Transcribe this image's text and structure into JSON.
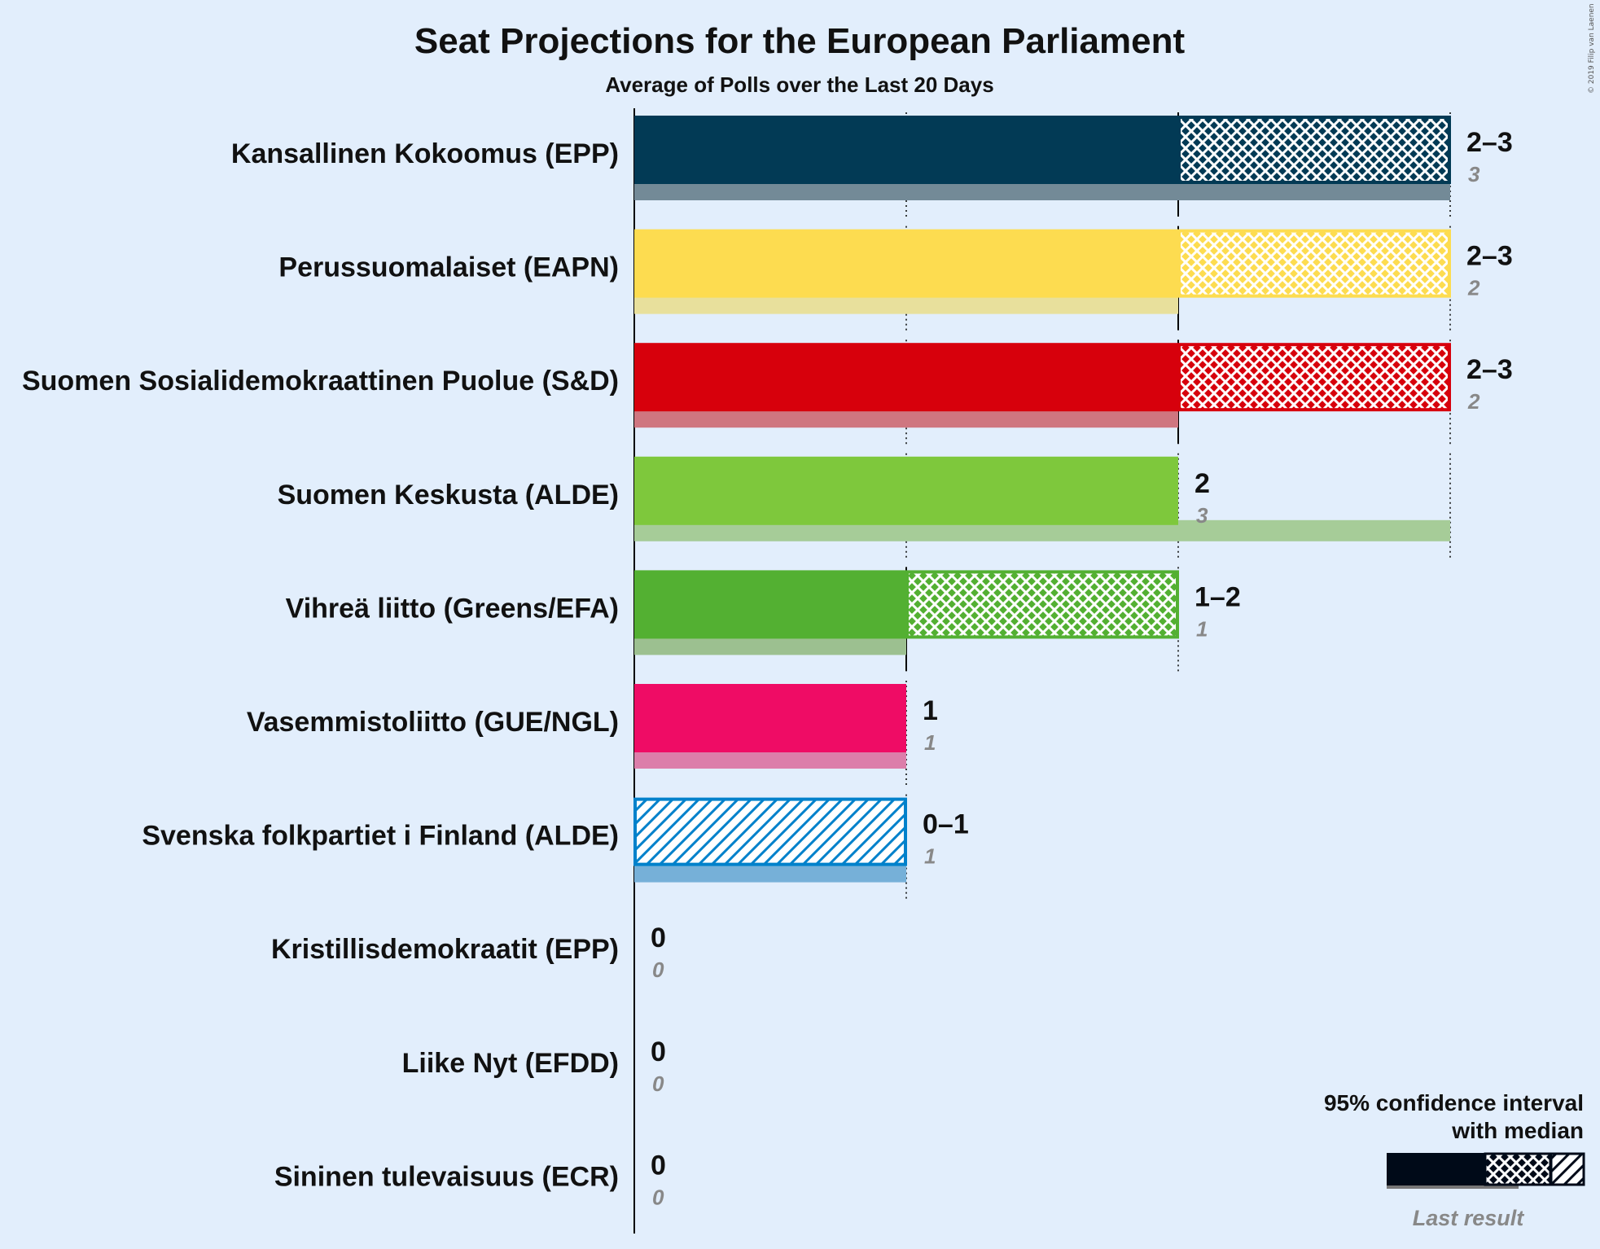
{
  "chart_data": {
    "type": "bar",
    "title": "Seat Projections for the European Parliament",
    "subtitle": "Average of Polls over the Last 20 Days",
    "xlim": [
      0,
      3
    ],
    "orientation": "horizontal",
    "copyright": "© 2019 Filip van Laenen",
    "legend": {
      "line1": "95% confidence interval",
      "line2": "with median",
      "last_result": "Last result",
      "placement": "bottom-right"
    },
    "parties": [
      {
        "name": "Kansallinen Kokoomus (EPP)",
        "low": 2,
        "median": 2,
        "high": 3,
        "label": "2–3",
        "last": 3,
        "last_label": "3",
        "color": "#023a55",
        "last_color": "#738a97"
      },
      {
        "name": "Perussuomalaiset (EAPN)",
        "low": 2,
        "median": 2,
        "high": 3,
        "label": "2–3",
        "last": 2,
        "last_label": "2",
        "color": "#fddc50",
        "last_color": "#e8e09c"
      },
      {
        "name": "Suomen Sosialidemokraattinen Puolue (S&D)",
        "low": 2,
        "median": 2,
        "high": 3,
        "label": "2–3",
        "last": 2,
        "last_label": "2",
        "color": "#d7000c",
        "last_color": "#cf7680"
      },
      {
        "name": "Suomen Keskusta (ALDE)",
        "low": 2,
        "median": 2,
        "high": 2,
        "label": "2",
        "last": 3,
        "last_label": "3",
        "color": "#7ec83c",
        "last_color": "#a6cc98"
      },
      {
        "name": "Vihreä liitto (Greens/EFA)",
        "low": 1,
        "median": 1,
        "high": 2,
        "label": "1–2",
        "last": 1,
        "last_label": "1",
        "color": "#53b032",
        "last_color": "#9cc090"
      },
      {
        "name": "Vasemmistoliitto (GUE/NGL)",
        "low": 1,
        "median": 1,
        "high": 1,
        "label": "1",
        "last": 1,
        "last_label": "1",
        "color": "#ef0c65",
        "last_color": "#dc7eaa"
      },
      {
        "name": "Svenska folkpartiet i Finland (ALDE)",
        "low": 0,
        "median": 0,
        "high": 1,
        "label": "0–1",
        "last": 1,
        "last_label": "1",
        "color": "#0081cb",
        "last_color": "#76b0d8"
      },
      {
        "name": "Kristillisdemokraatit (EPP)",
        "low": 0,
        "median": 0,
        "high": 0,
        "label": "0",
        "last": 0,
        "last_label": "0",
        "color": "#1f3b8a",
        "last_color": "#8f9fc7"
      },
      {
        "name": "Liike Nyt (EFDD)",
        "low": 0,
        "median": 0,
        "high": 0,
        "label": "0",
        "last": 0,
        "last_label": "0",
        "color": "#888888",
        "last_color": "#bbbbbb"
      },
      {
        "name": "Sininen tulevaisuus (ECR)",
        "low": 0,
        "median": 0,
        "high": 0,
        "label": "0",
        "last": 0,
        "last_label": "0",
        "color": "#003d84",
        "last_color": "#8899bb"
      }
    ]
  }
}
